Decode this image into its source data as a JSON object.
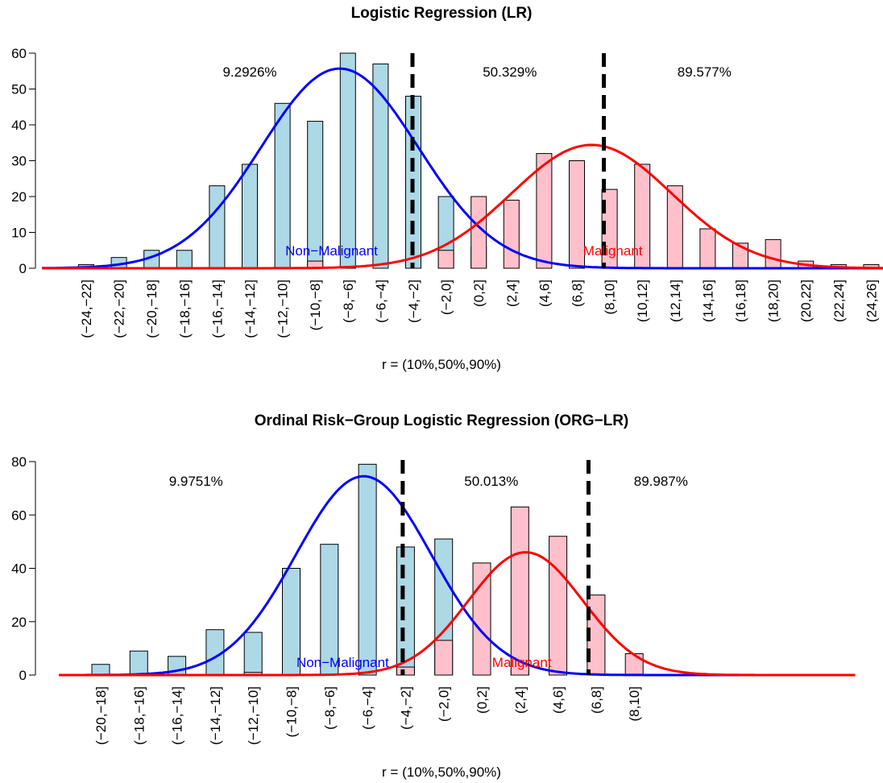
{
  "chart_data": [
    {
      "type": "bar",
      "title": "Logistic Regression (LR)",
      "xlabel": "r = (10%,50%,90%)",
      "ylabel": "",
      "ylim": [
        0,
        60
      ],
      "yticks": [
        0,
        10,
        20,
        30,
        40,
        50,
        60
      ],
      "categories": [
        "(−24,−22]",
        "(−22,−20]",
        "(−20,−18]",
        "(−18,−16]",
        "(−16,−14]",
        "(−14,−12]",
        "(−12,−10]",
        "(−10,−8]",
        "(−8,−6]",
        "(−6,−4]",
        "(−4,−2]",
        "(−2,0]",
        "(0,2]",
        "(2,4]",
        "(4,6]",
        "(6,8]",
        "(8,10]",
        "(10,12]",
        "(12,14]",
        "(14,16]",
        "(16,18]",
        "(18,20]",
        "(20,22]",
        "(22,24]",
        "(24,26]"
      ],
      "series": [
        {
          "name": "Non−Malignant",
          "color": "#add8e6",
          "values": [
            1,
            3,
            5,
            5,
            23,
            29,
            46,
            41,
            60,
            57,
            48,
            20,
            6,
            0,
            0,
            0,
            0,
            0,
            0,
            0,
            0,
            0,
            0,
            0,
            0
          ]
        },
        {
          "name": "Malignant",
          "color": "#ffc0cb",
          "values": [
            0,
            0,
            0,
            0,
            0,
            0,
            0,
            2,
            0,
            0,
            0,
            5,
            20,
            19,
            32,
            30,
            22,
            29,
            23,
            11,
            7,
            8,
            2,
            1,
            1
          ]
        }
      ],
      "curves": [
        {
          "name": "Non−Malignant",
          "color": "#0000ff",
          "mean": -7.5,
          "peak": 55.7,
          "sd": 4.8
        },
        {
          "name": "Malignant",
          "color": "#ff0000",
          "mean": 7.9,
          "peak": 34.4,
          "sd": 4.9
        }
      ],
      "x_range": [
        -25.7,
        27.0
      ],
      "vlines": [
        -3.05,
        8.65
      ],
      "percent_labels": [
        {
          "text": "9.2926%",
          "x": -13.0,
          "y": 53.5
        },
        {
          "text": "50.329%",
          "x": 2.9,
          "y": 53.5
        },
        {
          "text": "89.577%",
          "x": 14.8,
          "y": 53.5
        }
      ],
      "group_labels": [
        {
          "text": "Non−Malignant",
          "color": "#0000ff",
          "x": -8.0,
          "y": 5.0
        },
        {
          "text": "Malignant",
          "color": "#ff0000",
          "x": 9.2,
          "y": 5.0
        }
      ]
    },
    {
      "type": "bar",
      "title": "Ordinal Risk−Group Logistic Regression (ORG−LR)",
      "xlabel": "r = (10%,50%,90%)",
      "ylabel": "",
      "ylim": [
        0,
        80
      ],
      "yticks": [
        0,
        20,
        40,
        60,
        80
      ],
      "categories": [
        "(−20,−18]",
        "(−18,−16]",
        "(−16,−14]",
        "(−14,−12]",
        "(−12,−10]",
        "(−10,−8]",
        "(−8,−6]",
        "(−6,−4]",
        "(−4,−2]",
        "(−2,0]",
        "(0,2]",
        "(2,4]",
        "(4,6]",
        "(6,8]",
        "(8,10]"
      ],
      "series": [
        {
          "name": "Non−Malignant",
          "color": "#add8e6",
          "values": [
            4,
            9,
            7,
            17,
            16,
            40,
            49,
            79,
            48,
            51,
            15,
            2,
            0,
            0,
            0
          ]
        },
        {
          "name": "Malignant",
          "color": "#ffc0cb",
          "values": [
            0,
            0,
            0,
            0,
            1,
            0,
            0,
            0,
            3,
            13,
            42,
            63,
            52,
            30,
            8
          ]
        }
      ],
      "curves": [
        {
          "name": "Non−Malignant",
          "color": "#0000ff",
          "mean": -5.2,
          "peak": 74.5,
          "sd": 3.55
        },
        {
          "name": "Malignant",
          "color": "#ff0000",
          "mean": 3.3,
          "peak": 46.0,
          "sd": 3.0
        }
      ],
      "x_range": [
        -21.2,
        20.6
      ],
      "vlines": [
        -3.15,
        6.6
      ],
      "percent_labels": [
        {
          "text": "9.9751%",
          "x": -14.0,
          "y": 71.0
        },
        {
          "text": "50.013%",
          "x": 1.5,
          "y": 71.0
        },
        {
          "text": "89.987%",
          "x": 10.4,
          "y": 71.0
        }
      ],
      "group_labels": [
        {
          "text": "Non−Malignant",
          "color": "#0000ff",
          "x": -6.3,
          "y": 4.8
        },
        {
          "text": "Malignant",
          "color": "#ff0000",
          "x": 3.1,
          "y": 4.8
        }
      ]
    }
  ]
}
